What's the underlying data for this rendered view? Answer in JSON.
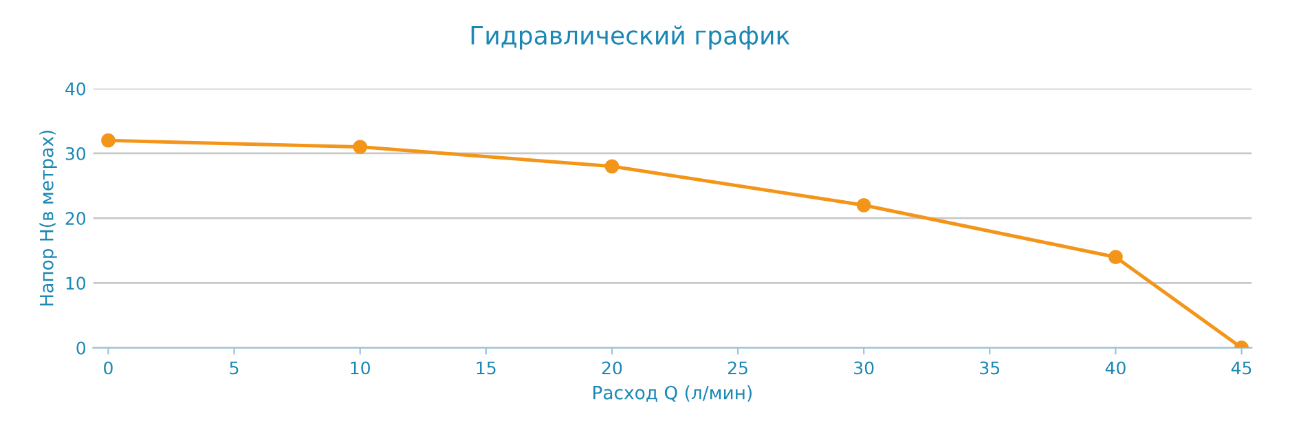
{
  "chart_data": {
    "type": "line",
    "title": "Гидравлический график",
    "xlabel": "Расход Q (л/мин)",
    "ylabel": "Напор H(в метрах)",
    "x": [
      0,
      10,
      20,
      30,
      40,
      45
    ],
    "series": [
      {
        "color": "#f39519",
        "values": [
          32,
          31,
          28,
          22,
          14,
          0
        ]
      }
    ],
    "xlim": [
      -0.6,
      45.4
    ],
    "xticks": [
      0,
      5,
      10,
      15,
      20,
      25,
      30,
      35,
      40,
      45
    ],
    "ylim": [
      0,
      40
    ],
    "yticks": [
      0,
      10,
      20,
      30,
      40
    ],
    "grid": "y",
    "marker": "circle",
    "line_style": "solid",
    "legend": false
  }
}
